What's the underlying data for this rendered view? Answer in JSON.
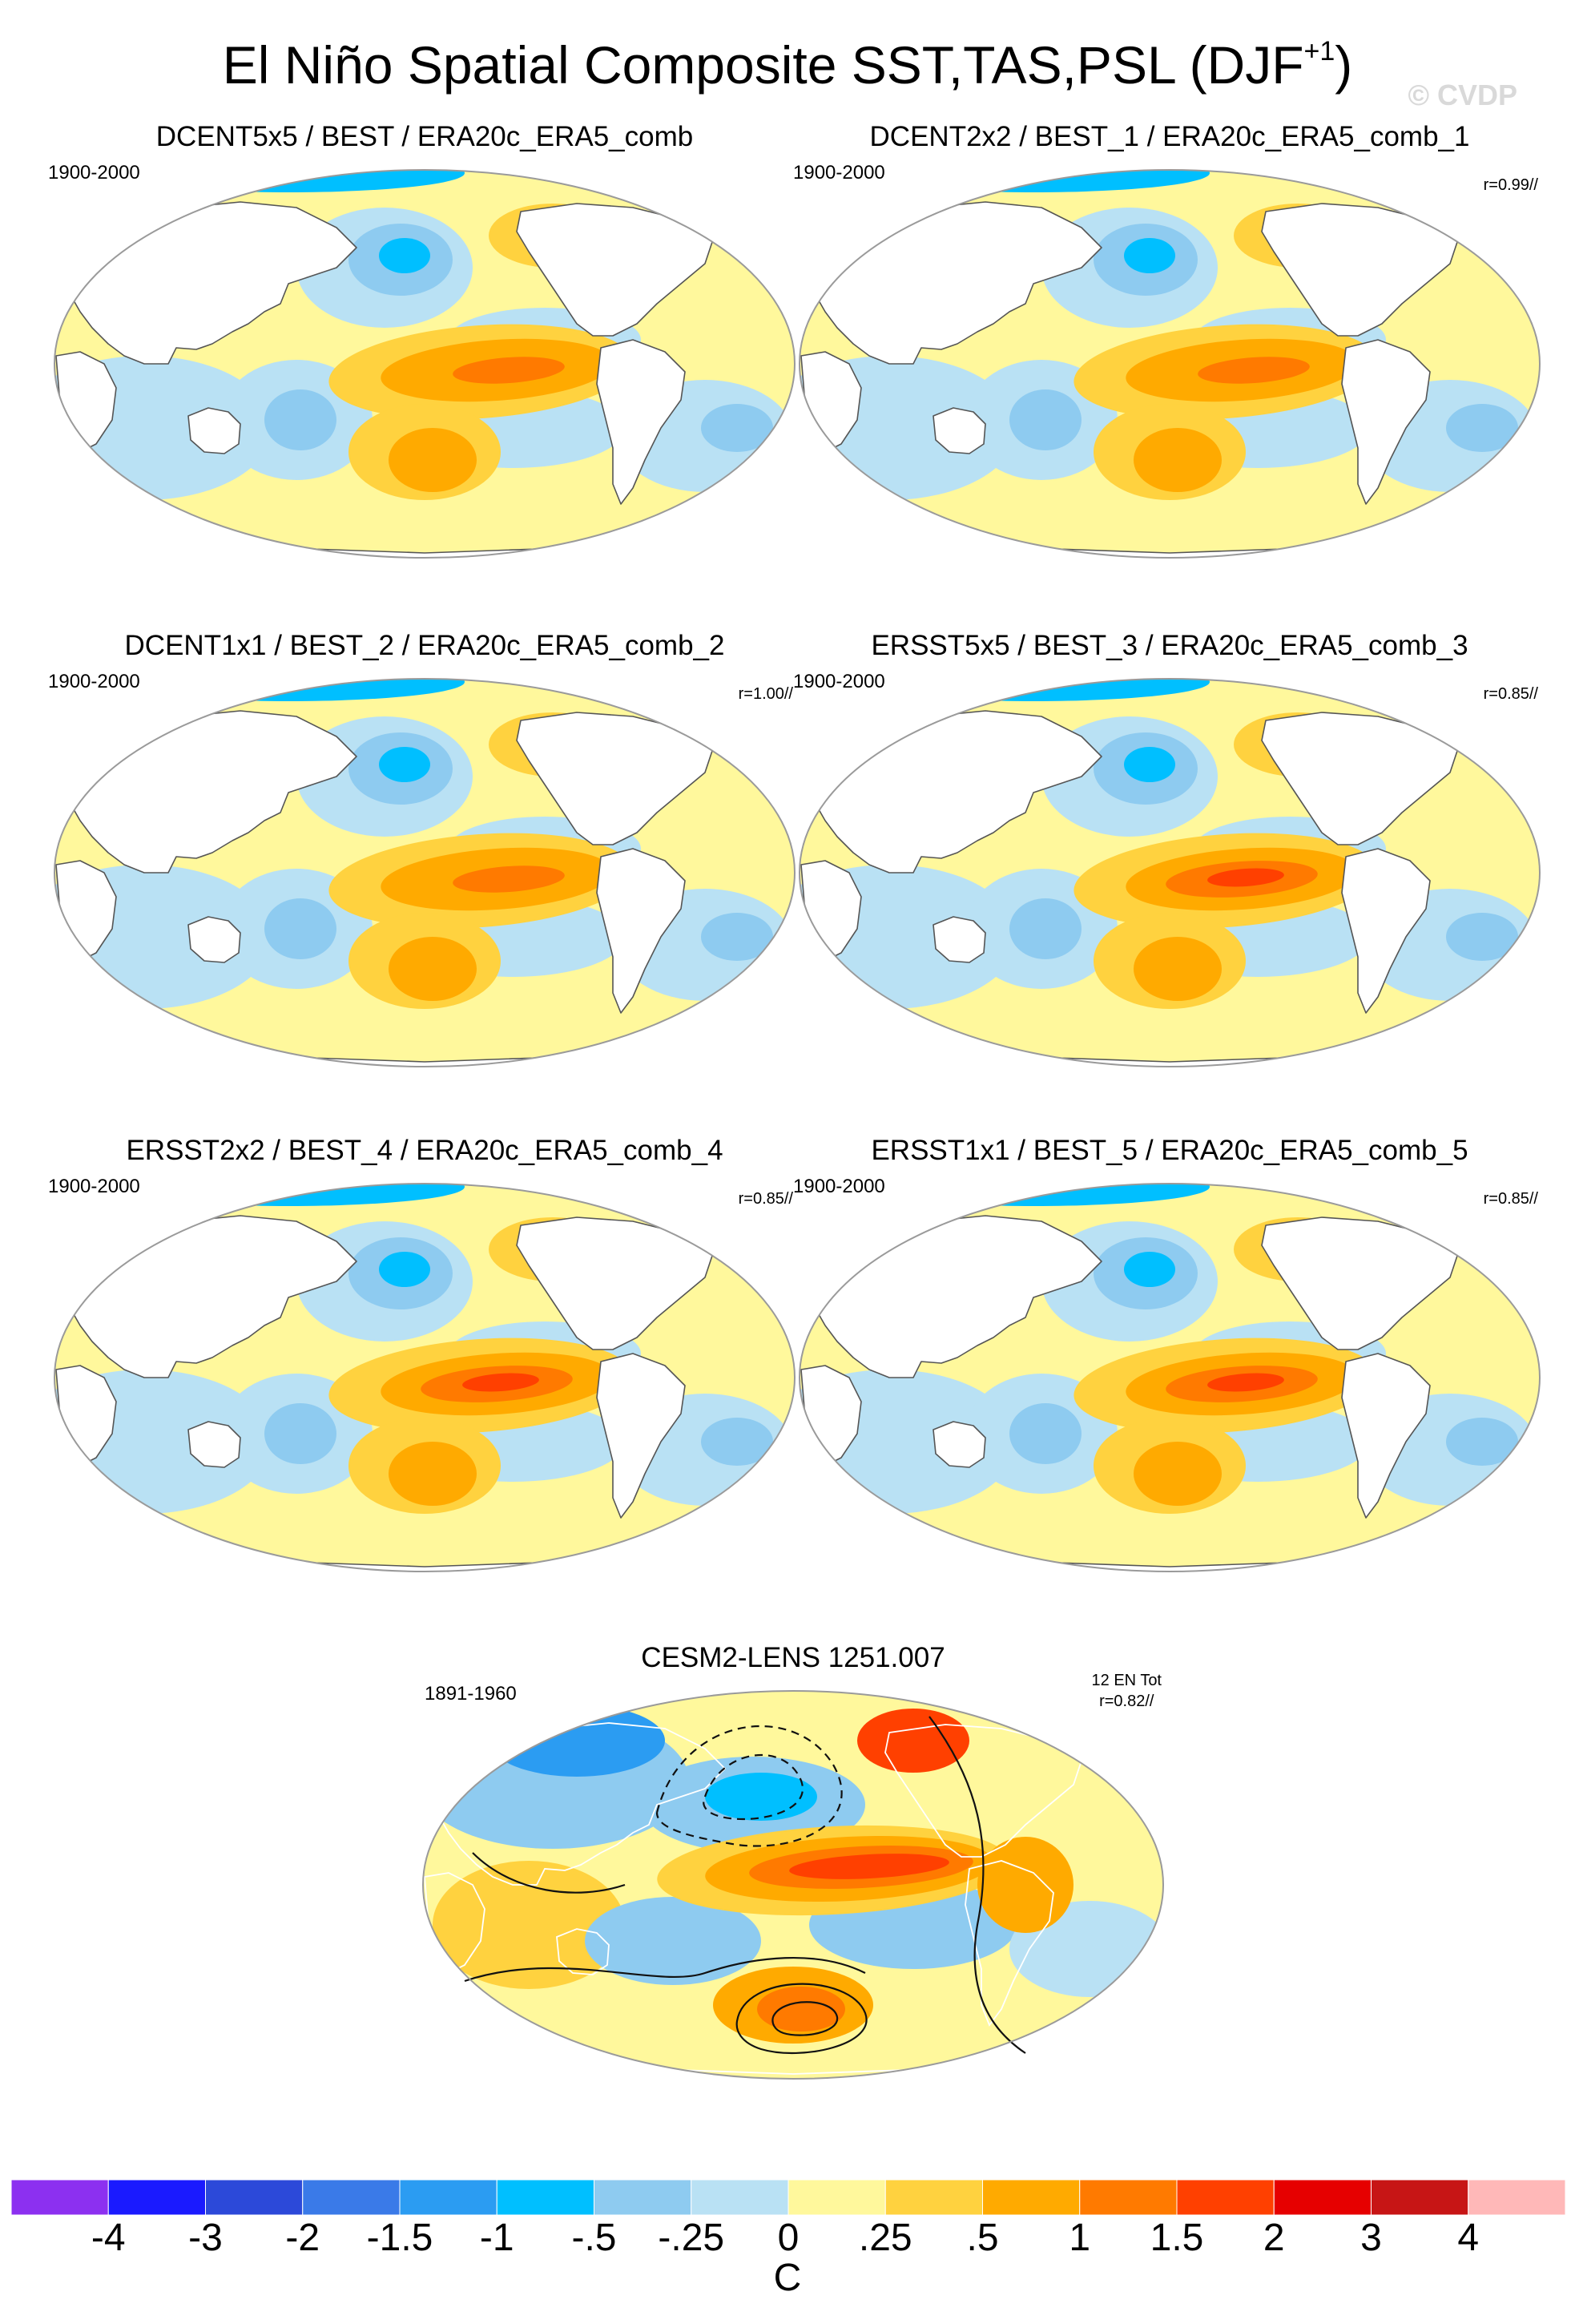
{
  "title": "El Niño Spatial Composite SST,TAS,PSL (DJF",
  "title_sup": "+1",
  "title_close": ")",
  "watermark": "© CVDP",
  "panels": [
    {
      "title": "DCENT5x5 / BEST / ERA20c_ERA5_comb",
      "years": "1900-2000",
      "corr": ""
    },
    {
      "title": "DCENT2x2 / BEST_1 / ERA20c_ERA5_comb_1",
      "years": "1900-2000",
      "corr": "r=0.99//"
    },
    {
      "title": "DCENT1x1 / BEST_2 / ERA20c_ERA5_comb_2",
      "years": "1900-2000",
      "corr": "r=1.00//"
    },
    {
      "title": "ERSST5x5 / BEST_3 / ERA20c_ERA5_comb_3",
      "years": "1900-2000",
      "corr": "r=0.85//"
    },
    {
      "title": "ERSST2x2 / BEST_4 / ERA20c_ERA5_comb_4",
      "years": "1900-2000",
      "corr": "r=0.85//"
    },
    {
      "title": "ERSST1x1 / BEST_5 / ERA20c_ERA5_comb_5",
      "years": "1900-2000",
      "corr": "r=0.85//"
    }
  ],
  "model_panel": {
    "title": "CESM2-LENS 1251.007",
    "years": "1891-1960",
    "count": "12 EN Tot",
    "corr": "r=0.82//"
  },
  "colorbar": {
    "unit": "C",
    "colors": [
      "#8c30f0",
      "#1a1aff",
      "#2c49d9",
      "#3a7ae8",
      "#2b9cf2",
      "#00bfff",
      "#8ecbf0",
      "#b9e1f4",
      "#fff89c",
      "#ffd23f",
      "#ffaa00",
      "#ff7a00",
      "#ff4000",
      "#e60000",
      "#c71515",
      "#ffb8b8"
    ],
    "ticks": [
      "-4",
      "-3",
      "-2",
      "-1.5",
      "-1",
      "-.5",
      "-.25",
      "0",
      ".25",
      ".5",
      "1",
      "1.5",
      "2",
      "3",
      "4"
    ]
  }
}
